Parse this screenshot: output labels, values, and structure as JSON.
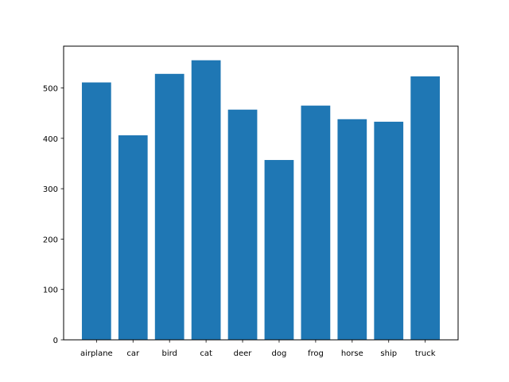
{
  "chart_data": {
    "type": "bar",
    "title": "",
    "xlabel": "",
    "ylabel": "",
    "categories": [
      "airplane",
      "car",
      "bird",
      "cat",
      "deer",
      "dog",
      "frog",
      "horse",
      "ship",
      "truck"
    ],
    "values": [
      511,
      406,
      528,
      555,
      457,
      357,
      465,
      438,
      433,
      523
    ],
    "ylim": [
      0,
      583
    ],
    "yticks": [
      0,
      100,
      200,
      300,
      400,
      500
    ],
    "grid": false,
    "legend": "none",
    "bar_color": "#1f77b4"
  }
}
